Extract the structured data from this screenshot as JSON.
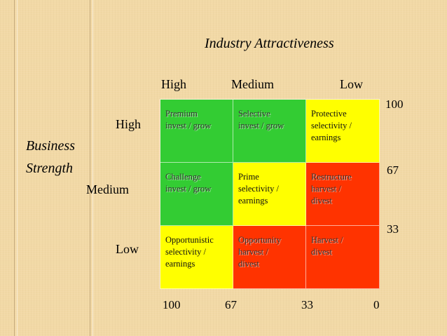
{
  "title": "Industry Attractiveness",
  "columns": [
    "High",
    "Medium",
    "Low"
  ],
  "rows": [
    "High",
    "Medium",
    "Low"
  ],
  "y_axis_title": [
    "Business",
    "Strength"
  ],
  "right_scale": [
    "100",
    "67",
    "33"
  ],
  "bottom_scale": [
    "100",
    "67",
    "33",
    "0"
  ],
  "cells": [
    {
      "text": [
        "Premium",
        "invest / grow"
      ],
      "color": "#33cc33"
    },
    {
      "text": [
        "Selective",
        "invest / grow"
      ],
      "color": "#33cc33"
    },
    {
      "text": [
        "Protective",
        "selectivity /",
        "earnings"
      ],
      "color": "#ffff00"
    },
    {
      "text": [
        "Challenge",
        "invest / grow"
      ],
      "color": "#33cc33"
    },
    {
      "text": [
        "Prime",
        "selectivity /",
        "earnings"
      ],
      "color": "#ffff00"
    },
    {
      "text": [
        "Restructure",
        "harvest /",
        "divest"
      ],
      "color": "#ff3300"
    },
    {
      "text": [
        "Opportunistic",
        "selectivity /",
        "earnings"
      ],
      "color": "#ffff00"
    },
    {
      "text": [
        "Opportunity",
        "harvest /",
        "divest"
      ],
      "color": "#ff3300"
    },
    {
      "text": [
        "Harvest /",
        "divest"
      ],
      "color": "#ff3300"
    }
  ]
}
